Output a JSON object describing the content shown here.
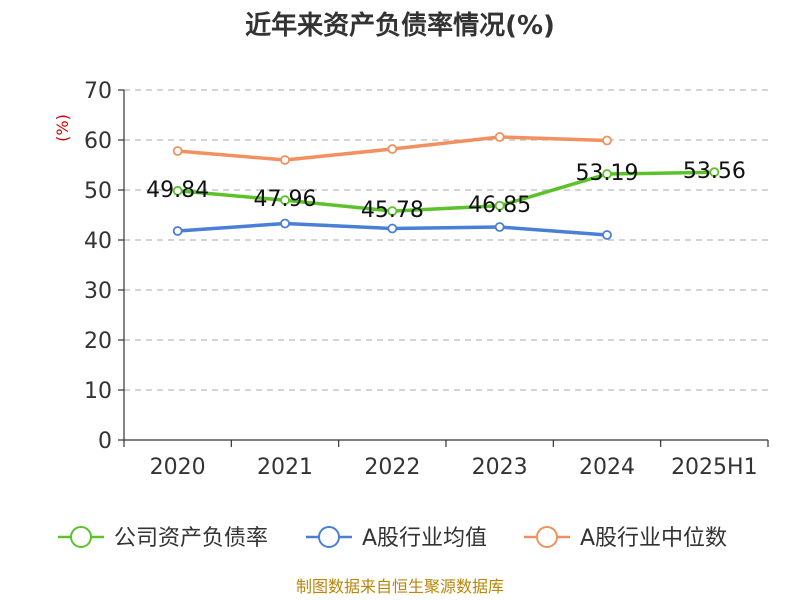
{
  "chart_data": {
    "type": "line",
    "title": "近年来资产负债率情况(%)",
    "ylabel": "(%)",
    "categories": [
      "2020",
      "2021",
      "2022",
      "2023",
      "2024",
      "2025H1"
    ],
    "ylim": [
      0,
      70
    ],
    "yticks": [
      0,
      10,
      20,
      30,
      40,
      50,
      60,
      70
    ],
    "grid": true,
    "legend_position": "bottom",
    "series": [
      {
        "name": "公司资产负债率",
        "color": "#5cc22a",
        "values": [
          49.84,
          47.96,
          45.78,
          46.85,
          53.19,
          53.56
        ],
        "labels": [
          "49.84",
          "47.96",
          "45.78",
          "46.85",
          "53.19",
          "53.56"
        ]
      },
      {
        "name": "A股行业均值",
        "color": "#4a7fd6",
        "values": [
          41.8,
          43.3,
          42.3,
          42.6,
          41.0,
          null
        ]
      },
      {
        "name": "A股行业中位数",
        "color": "#f39060",
        "values": [
          57.8,
          56.0,
          58.2,
          60.6,
          59.9,
          null
        ]
      }
    ]
  },
  "source_note": "制图数据来自恒生聚源数据库"
}
